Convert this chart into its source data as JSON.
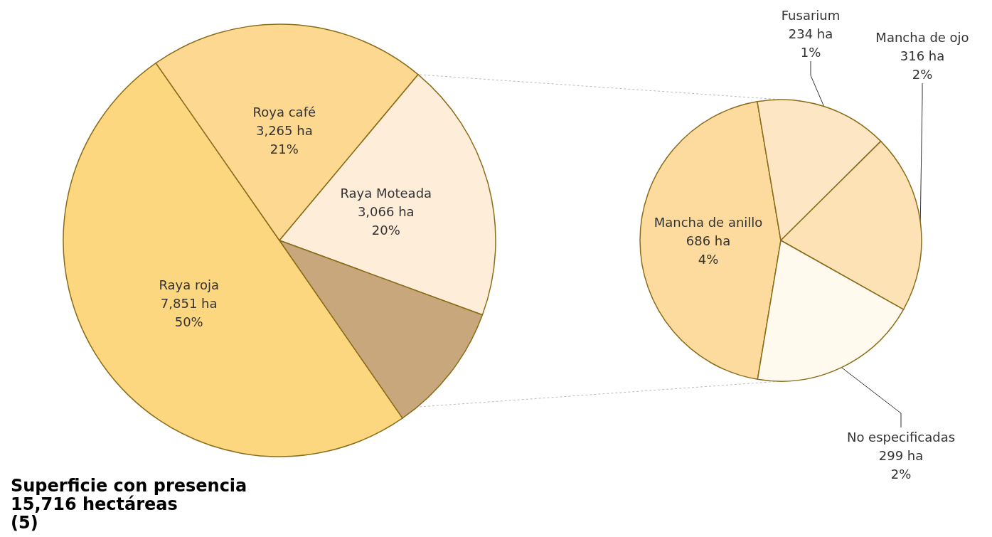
{
  "chart_data": [
    {
      "type": "pie",
      "title": "Superficie con presencia\n15,716 hectáreas\n(5)",
      "categories": [
        "Raya roja",
        "Roya café",
        "Raya Moteada",
        null
      ],
      "values": [
        7851,
        3265,
        3066,
        1535
      ],
      "value_labels": [
        "7,851 ha\n50%",
        "3,265 ha\n21%",
        "3,066 ha\n20%",
        null
      ],
      "colors": [
        "#fdd680",
        "#fdd890",
        "#feedd8",
        "#c9a77c"
      ]
    },
    {
      "type": "pie",
      "categories": [
        "Mancha de anillo",
        "Fusarium",
        "Mancha de ojo",
        "No especificadas"
      ],
      "values": [
        686,
        234,
        316,
        299
      ],
      "value_labels": [
        "686 ha\n4%",
        "234 ha\n1%",
        "316 ha\n2%",
        "299 ha\n2%"
      ],
      "colors": [
        "#fddb9e",
        "#fde6c4",
        "#fde2b6",
        "#fff9ee"
      ]
    }
  ]
}
